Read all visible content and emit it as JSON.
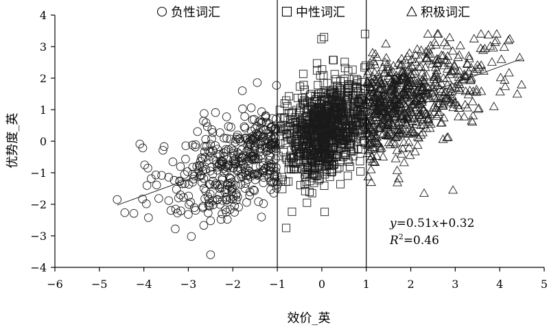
{
  "chart_data": {
    "type": "scatter",
    "title": "",
    "xlabel": "效价_英",
    "ylabel": "优势度_英",
    "xlim": [
      -6,
      5
    ],
    "ylim": [
      -4,
      4
    ],
    "xticks": [
      "−6",
      "−5",
      "−4",
      "−3",
      "−2",
      "−1",
      "0",
      "1",
      "2",
      "3",
      "4",
      "5"
    ],
    "yticks": [
      "4",
      "3",
      "2",
      "1",
      "0",
      "−1",
      "−2",
      "−3",
      "−4"
    ],
    "dividers_x": [
      -1,
      1
    ],
    "grid": false,
    "legend_placement": "top",
    "series": [
      {
        "name": "负性词汇",
        "marker": "circle",
        "x_range": [
          -4.6,
          -1
        ],
        "approx_count": 420
      },
      {
        "name": "中性词汇",
        "marker": "square",
        "x_range": [
          -1,
          1
        ],
        "approx_count": 900
      },
      {
        "name": "积极词汇",
        "marker": "triangle",
        "x_range": [
          1,
          4.5
        ],
        "approx_count": 700
      }
    ],
    "regression": {
      "slope": 0.51,
      "intercept": 0.32,
      "r2": 0.46,
      "equation_text": "y=0.51x+0.32",
      "r2_text": "R²=0.46"
    },
    "notable_points": [
      {
        "series": "负性词汇",
        "x": -4.6,
        "y": -1.85
      },
      {
        "series": "负性词汇",
        "x": -2.5,
        "y": -3.6
      },
      {
        "series": "中性词汇",
        "x": -0.8,
        "y": -2.75
      },
      {
        "series": "中性词汇",
        "x": 0.05,
        "y": 3.3
      },
      {
        "series": "积极词汇",
        "x": 4.45,
        "y": 2.65
      },
      {
        "series": "积极词汇",
        "x": 2.3,
        "y": -1.65
      },
      {
        "series": "积极词汇",
        "x": 2.95,
        "y": -1.55
      }
    ]
  },
  "annotation": {
    "eq_y": "y",
    "eq_rest": "=0.51",
    "eq_x": "x",
    "eq_tail": "+0.32",
    "r2_R": "R",
    "r2_sup": "2",
    "r2_rest": "=0.46"
  }
}
